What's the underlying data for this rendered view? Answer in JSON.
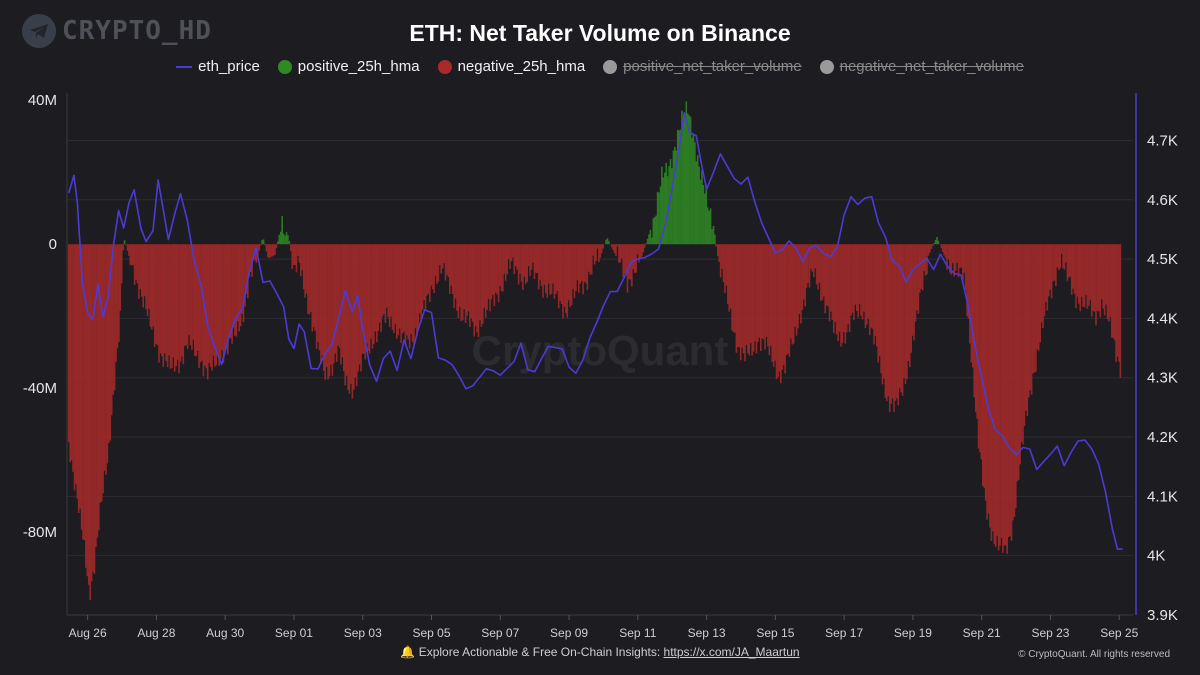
{
  "brand": {
    "text": "CRYPTO_HD",
    "icon": "telegram-icon"
  },
  "watermark": "CryptoQuant",
  "footer": {
    "bell_icon": "bell-icon",
    "text": "Explore Actionable & Free On-Chain Insights:",
    "link": "https://x.com/JA_Maartun"
  },
  "copyright": "© CryptoQuant. All rights reserved",
  "colors": {
    "bg": "#1d1c21",
    "price": "#4b3bd6",
    "positive": "#2f8a24",
    "negative": "#a82a2a",
    "disabled": "#9a9a9a"
  },
  "chart_data": {
    "type": "bar",
    "title": "ETH: Net Taker Volume on Binance",
    "legend": [
      {
        "name": "eth_price",
        "marker": "line",
        "color": "#4b3bd6",
        "enabled": true
      },
      {
        "name": "positive_25h_hma",
        "marker": "dot",
        "color": "#2f8a24",
        "enabled": true
      },
      {
        "name": "negative_25h_hma",
        "marker": "dot",
        "color": "#a82a2a",
        "enabled": true
      },
      {
        "name": "positive_net_taker_volume",
        "marker": "dot",
        "color": "#9a9a9a",
        "enabled": false
      },
      {
        "name": "negative_net_taker_volume",
        "marker": "dot",
        "color": "#9a9a9a",
        "enabled": false
      }
    ],
    "x_labels": [
      "Aug 26",
      "Aug 28",
      "Aug 30",
      "Sep 01",
      "Sep 03",
      "Sep 05",
      "Sep 07",
      "Sep 09",
      "Sep 11",
      "Sep 13",
      "Sep 15",
      "Sep 17",
      "Sep 19",
      "Sep 21",
      "Sep 23",
      "Sep 25"
    ],
    "x_range_days": [
      25.4,
      56.4
    ],
    "y_left": {
      "ticks": [
        40,
        0,
        -40,
        -80
      ],
      "tick_labels": [
        "40M",
        "0",
        "-40M",
        "-80M"
      ],
      "ylim": [
        -103,
        42
      ],
      "unit": "M"
    },
    "y_right": {
      "ticks": [
        3900,
        4000,
        4100,
        4200,
        4300,
        4400,
        4500,
        4600,
        4700
      ],
      "tick_labels": [
        "3.9K",
        "4K",
        "4.1K",
        "4.2K",
        "4.3K",
        "4.4K",
        "4.5K",
        "4.6K",
        "4.7K"
      ],
      "ylim": [
        3900,
        4780
      ]
    },
    "eth_price": [
      [
        25.45,
        4610
      ],
      [
        25.6,
        4640
      ],
      [
        25.7,
        4590
      ],
      [
        25.85,
        4460
      ],
      [
        26.0,
        4420
      ],
      [
        26.15,
        4400
      ],
      [
        26.3,
        4450
      ],
      [
        26.45,
        4400
      ],
      [
        26.6,
        4440
      ],
      [
        26.75,
        4520
      ],
      [
        26.9,
        4580
      ],
      [
        27.05,
        4560
      ],
      [
        27.2,
        4600
      ],
      [
        27.35,
        4610
      ],
      [
        27.55,
        4560
      ],
      [
        27.7,
        4530
      ],
      [
        27.9,
        4550
      ],
      [
        28.05,
        4630
      ],
      [
        28.2,
        4580
      ],
      [
        28.35,
        4540
      ],
      [
        28.55,
        4570
      ],
      [
        28.7,
        4610
      ],
      [
        28.9,
        4560
      ],
      [
        29.1,
        4500
      ],
      [
        29.3,
        4460
      ],
      [
        29.5,
        4380
      ],
      [
        29.7,
        4350
      ],
      [
        29.9,
        4330
      ],
      [
        30.1,
        4360
      ],
      [
        30.3,
        4400
      ],
      [
        30.5,
        4420
      ],
      [
        30.7,
        4480
      ],
      [
        30.9,
        4510
      ],
      [
        31.1,
        4470
      ],
      [
        31.3,
        4460
      ],
      [
        31.5,
        4440
      ],
      [
        31.7,
        4420
      ],
      [
        31.85,
        4360
      ],
      [
        32.0,
        4350
      ],
      [
        32.15,
        4400
      ],
      [
        32.3,
        4380
      ],
      [
        32.5,
        4320
      ],
      [
        32.7,
        4310
      ],
      [
        32.9,
        4340
      ],
      [
        33.1,
        4360
      ],
      [
        33.3,
        4400
      ],
      [
        33.5,
        4440
      ],
      [
        33.7,
        4420
      ],
      [
        33.85,
        4440
      ],
      [
        34.0,
        4380
      ],
      [
        34.2,
        4320
      ],
      [
        34.4,
        4300
      ],
      [
        34.6,
        4330
      ],
      [
        34.8,
        4340
      ],
      [
        35.0,
        4320
      ],
      [
        35.2,
        4360
      ],
      [
        35.4,
        4330
      ],
      [
        35.6,
        4380
      ],
      [
        35.8,
        4420
      ],
      [
        36.0,
        4400
      ],
      [
        36.2,
        4340
      ],
      [
        36.4,
        4330
      ],
      [
        36.6,
        4320
      ],
      [
        36.8,
        4300
      ],
      [
        37.0,
        4290
      ],
      [
        37.2,
        4280
      ],
      [
        37.4,
        4300
      ],
      [
        37.6,
        4320
      ],
      [
        37.8,
        4310
      ],
      [
        38.0,
        4300
      ],
      [
        38.2,
        4320
      ],
      [
        38.4,
        4330
      ],
      [
        38.6,
        4350
      ],
      [
        38.8,
        4320
      ],
      [
        39.0,
        4310
      ],
      [
        39.2,
        4330
      ],
      [
        39.4,
        4350
      ],
      [
        39.6,
        4360
      ],
      [
        39.8,
        4340
      ],
      [
        40.0,
        4320
      ],
      [
        40.2,
        4310
      ],
      [
        40.4,
        4330
      ],
      [
        40.6,
        4360
      ],
      [
        40.8,
        4400
      ],
      [
        41.0,
        4420
      ],
      [
        41.2,
        4440
      ],
      [
        41.4,
        4450
      ],
      [
        41.6,
        4470
      ],
      [
        41.8,
        4490
      ],
      [
        42.0,
        4500
      ],
      [
        42.2,
        4510
      ],
      [
        42.4,
        4500
      ],
      [
        42.6,
        4520
      ],
      [
        42.8,
        4560
      ],
      [
        43.0,
        4620
      ],
      [
        43.2,
        4680
      ],
      [
        43.35,
        4740
      ],
      [
        43.5,
        4720
      ],
      [
        43.7,
        4700
      ],
      [
        43.85,
        4660
      ],
      [
        44.0,
        4620
      ],
      [
        44.2,
        4650
      ],
      [
        44.4,
        4670
      ],
      [
        44.6,
        4660
      ],
      [
        44.8,
        4640
      ],
      [
        45.0,
        4620
      ],
      [
        45.2,
        4640
      ],
      [
        45.4,
        4600
      ],
      [
        45.6,
        4560
      ],
      [
        45.8,
        4530
      ],
      [
        46.0,
        4520
      ],
      [
        46.2,
        4510
      ],
      [
        46.4,
        4530
      ],
      [
        46.6,
        4520
      ],
      [
        46.8,
        4500
      ],
      [
        47.0,
        4510
      ],
      [
        47.2,
        4530
      ],
      [
        47.4,
        4510
      ],
      [
        47.6,
        4500
      ],
      [
        47.8,
        4520
      ],
      [
        48.0,
        4580
      ],
      [
        48.2,
        4600
      ],
      [
        48.4,
        4590
      ],
      [
        48.6,
        4610
      ],
      [
        48.8,
        4600
      ],
      [
        49.0,
        4560
      ],
      [
        49.2,
        4540
      ],
      [
        49.4,
        4500
      ],
      [
        49.6,
        4480
      ],
      [
        49.8,
        4470
      ],
      [
        50.0,
        4480
      ],
      [
        50.2,
        4490
      ],
      [
        50.4,
        4500
      ],
      [
        50.6,
        4490
      ],
      [
        50.8,
        4500
      ],
      [
        51.0,
        4490
      ],
      [
        51.2,
        4480
      ],
      [
        51.4,
        4470
      ],
      [
        51.6,
        4420
      ],
      [
        51.8,
        4360
      ],
      [
        52.0,
        4300
      ],
      [
        52.2,
        4240
      ],
      [
        52.4,
        4220
      ],
      [
        52.6,
        4200
      ],
      [
        52.8,
        4180
      ],
      [
        53.0,
        4170
      ],
      [
        53.2,
        4190
      ],
      [
        53.4,
        4170
      ],
      [
        53.6,
        4150
      ],
      [
        53.8,
        4160
      ],
      [
        54.0,
        4170
      ],
      [
        54.2,
        4180
      ],
      [
        54.4,
        4160
      ],
      [
        54.6,
        4170
      ],
      [
        54.8,
        4190
      ],
      [
        55.0,
        4200
      ],
      [
        55.2,
        4180
      ],
      [
        55.4,
        4150
      ],
      [
        55.6,
        4110
      ],
      [
        55.8,
        4050
      ],
      [
        55.95,
        4020
      ],
      [
        56.1,
        4010
      ]
    ],
    "net_taker_hma": [
      [
        25.45,
        -55
      ],
      [
        25.7,
        -70
      ],
      [
        25.9,
        -85
      ],
      [
        26.05,
        -98
      ],
      [
        26.2,
        -88
      ],
      [
        26.35,
        -75
      ],
      [
        26.6,
        -60
      ],
      [
        26.8,
        -35
      ],
      [
        26.95,
        -20
      ],
      [
        27.05,
        2
      ],
      [
        27.25,
        -5
      ],
      [
        27.5,
        -12
      ],
      [
        27.8,
        -22
      ],
      [
        28.1,
        -30
      ],
      [
        28.4,
        -35
      ],
      [
        28.7,
        -32
      ],
      [
        28.9,
        -28
      ],
      [
        29.1,
        -30
      ],
      [
        29.3,
        -32
      ],
      [
        29.5,
        -36
      ],
      [
        29.7,
        -34
      ],
      [
        29.9,
        -30
      ],
      [
        30.1,
        -28
      ],
      [
        30.3,
        -26
      ],
      [
        30.5,
        -20
      ],
      [
        30.7,
        -10
      ],
      [
        30.9,
        -5
      ],
      [
        31.1,
        2
      ],
      [
        31.25,
        -4
      ],
      [
        31.45,
        -3
      ],
      [
        31.65,
        6
      ],
      [
        31.85,
        2
      ],
      [
        32.0,
        -8
      ],
      [
        32.15,
        -6
      ],
      [
        32.3,
        -12
      ],
      [
        32.5,
        -20
      ],
      [
        32.7,
        -30
      ],
      [
        32.9,
        -36
      ],
      [
        33.1,
        -34
      ],
      [
        33.3,
        -30
      ],
      [
        33.5,
        -38
      ],
      [
        33.7,
        -40
      ],
      [
        33.9,
        -36
      ],
      [
        34.1,
        -30
      ],
      [
        34.3,
        -26
      ],
      [
        34.5,
        -24
      ],
      [
        34.7,
        -20
      ],
      [
        34.9,
        -22
      ],
      [
        35.1,
        -26
      ],
      [
        35.3,
        -28
      ],
      [
        35.5,
        -25
      ],
      [
        35.7,
        -20
      ],
      [
        35.9,
        -16
      ],
      [
        36.1,
        -10
      ],
      [
        36.3,
        -6
      ],
      [
        36.5,
        -12
      ],
      [
        36.7,
        -16
      ],
      [
        36.9,
        -20
      ],
      [
        37.1,
        -22
      ],
      [
        37.3,
        -24
      ],
      [
        37.5,
        -20
      ],
      [
        37.7,
        -18
      ],
      [
        37.9,
        -14
      ],
      [
        38.1,
        -10
      ],
      [
        38.3,
        -6
      ],
      [
        38.5,
        -8
      ],
      [
        38.7,
        -10
      ],
      [
        38.9,
        -8
      ],
      [
        39.1,
        -10
      ],
      [
        39.3,
        -12
      ],
      [
        39.5,
        -14
      ],
      [
        39.7,
        -16
      ],
      [
        39.9,
        -18
      ],
      [
        40.1,
        -16
      ],
      [
        40.3,
        -12
      ],
      [
        40.5,
        -10
      ],
      [
        40.7,
        -6
      ],
      [
        40.9,
        -4
      ],
      [
        41.1,
        2
      ],
      [
        41.3,
        -2
      ],
      [
        41.5,
        -6
      ],
      [
        41.7,
        -10
      ],
      [
        41.9,
        -8
      ],
      [
        42.1,
        -4
      ],
      [
        42.3,
        2
      ],
      [
        42.5,
        8
      ],
      [
        42.7,
        18
      ],
      [
        42.9,
        22
      ],
      [
        43.1,
        28
      ],
      [
        43.3,
        34
      ],
      [
        43.45,
        38
      ],
      [
        43.6,
        32
      ],
      [
        43.8,
        20
      ],
      [
        44.0,
        12
      ],
      [
        44.2,
        6
      ],
      [
        44.3,
        -2
      ],
      [
        44.5,
        -12
      ],
      [
        44.7,
        -20
      ],
      [
        44.9,
        -28
      ],
      [
        45.1,
        -32
      ],
      [
        45.3,
        -30
      ],
      [
        45.5,
        -26
      ],
      [
        45.7,
        -28
      ],
      [
        45.9,
        -32
      ],
      [
        46.1,
        -36
      ],
      [
        46.3,
        -34
      ],
      [
        46.5,
        -28
      ],
      [
        46.7,
        -20
      ],
      [
        46.9,
        -14
      ],
      [
        47.1,
        -8
      ],
      [
        47.3,
        -12
      ],
      [
        47.5,
        -18
      ],
      [
        47.7,
        -24
      ],
      [
        47.9,
        -26
      ],
      [
        48.1,
        -24
      ],
      [
        48.3,
        -20
      ],
      [
        48.5,
        -18
      ],
      [
        48.7,
        -22
      ],
      [
        48.9,
        -28
      ],
      [
        49.1,
        -36
      ],
      [
        49.3,
        -44
      ],
      [
        49.5,
        -46
      ],
      [
        49.7,
        -40
      ],
      [
        49.9,
        -32
      ],
      [
        50.1,
        -22
      ],
      [
        50.3,
        -10
      ],
      [
        50.5,
        -2
      ],
      [
        50.7,
        2
      ],
      [
        50.9,
        -3
      ],
      [
        51.1,
        -6
      ],
      [
        51.3,
        -8
      ],
      [
        51.5,
        -10
      ],
      [
        51.7,
        -30
      ],
      [
        51.9,
        -55
      ],
      [
        52.1,
        -72
      ],
      [
        52.3,
        -80
      ],
      [
        52.5,
        -84
      ],
      [
        52.7,
        -86
      ],
      [
        52.9,
        -78
      ],
      [
        53.1,
        -62
      ],
      [
        53.3,
        -48
      ],
      [
        53.5,
        -36
      ],
      [
        53.7,
        -26
      ],
      [
        53.9,
        -18
      ],
      [
        54.1,
        -10
      ],
      [
        54.3,
        -4
      ],
      [
        54.5,
        -10
      ],
      [
        54.7,
        -14
      ],
      [
        54.9,
        -16
      ],
      [
        55.1,
        -18
      ],
      [
        55.3,
        -20
      ],
      [
        55.5,
        -16
      ],
      [
        55.7,
        -22
      ],
      [
        55.9,
        -30
      ],
      [
        56.05,
        -34
      ]
    ]
  }
}
